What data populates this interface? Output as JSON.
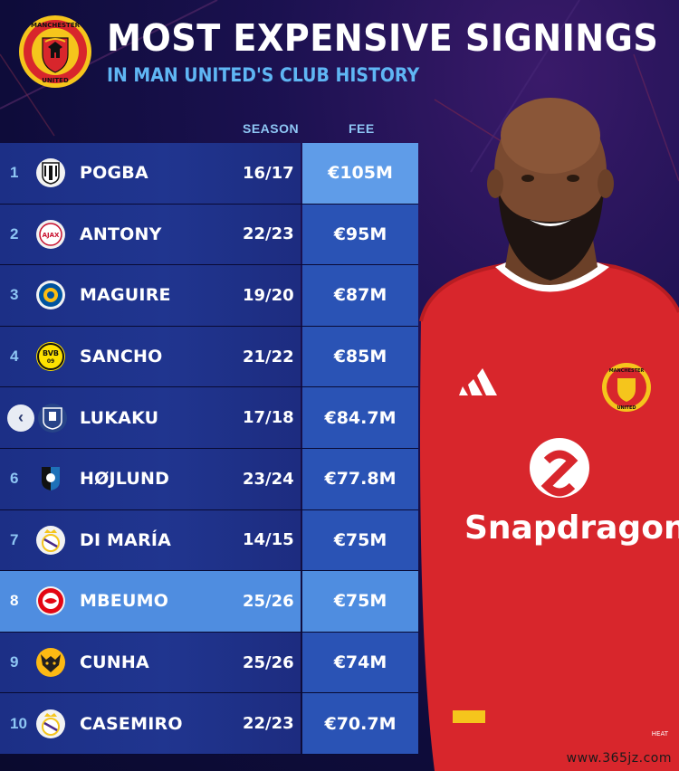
{
  "header": {
    "title": "MOST EXPENSIVE SIGNINGS",
    "subtitle": "IN MAN UNITED'S CLUB HISTORY",
    "crest_text_top": "MANCHESTER",
    "crest_text_bottom": "UNITED"
  },
  "columns": {
    "season": "SEASON",
    "fee": "FEE"
  },
  "rows": [
    {
      "rank": "1",
      "club_icon": "juventus-badge",
      "name": "POGBA",
      "season": "16/17",
      "fee": "€105M"
    },
    {
      "rank": "2",
      "club_icon": "ajax-badge",
      "name": "ANTONY",
      "season": "22/23",
      "fee": "€95M"
    },
    {
      "rank": "3",
      "club_icon": "leicester-badge",
      "name": "MAGUIRE",
      "season": "19/20",
      "fee": "€87M"
    },
    {
      "rank": "4",
      "club_icon": "dortmund-badge",
      "name": "SANCHO",
      "season": "21/22",
      "fee": "€85M"
    },
    {
      "rank": "",
      "club_icon": "everton-badge",
      "name": "LUKAKU",
      "season": "17/18",
      "fee": "€84.7M"
    },
    {
      "rank": "6",
      "club_icon": "atalanta-badge",
      "name": "HØJLUND",
      "season": "23/24",
      "fee": "€77.8M"
    },
    {
      "rank": "7",
      "club_icon": "real-madrid-badge",
      "name": "DI MARÍA",
      "season": "14/15",
      "fee": "€75M"
    },
    {
      "rank": "8",
      "club_icon": "brentford-badge",
      "name": "MBEUMO",
      "season": "25/26",
      "fee": "€75M"
    },
    {
      "rank": "9",
      "club_icon": "wolves-badge",
      "name": "CUNHA",
      "season": "25/26",
      "fee": "€74M"
    },
    {
      "rank": "10",
      "club_icon": "real-madrid-badge",
      "name": "CASEMIRO",
      "season": "22/23",
      "fee": "€70.7M"
    }
  ],
  "badges": {
    "ajax": "AJAX",
    "bvb": "BVB",
    "dortmund_year": "09"
  },
  "player": {
    "sponsor": "Snapdragon",
    "shirt_crest_top": "MANCHESTER",
    "shirt_crest_bottom": "UNITED",
    "shirt_tag": "HEAT"
  },
  "watermark": "www.365jz.com",
  "colors": {
    "background": "#0e0c3a",
    "accent": "#5fb6f4",
    "row": "#1f338c",
    "fee_cell": "#2a53b5",
    "highlight": "#4f8de0",
    "shirt": "#d8262c"
  }
}
